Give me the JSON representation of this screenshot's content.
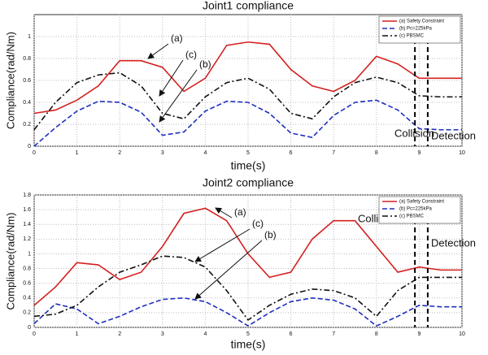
{
  "chart_data": [
    {
      "type": "line",
      "title": "Joint1 compliance",
      "x_label": "time(s)",
      "y_label": "Compliance(rad/Nm)",
      "x": [
        0,
        0.5,
        1,
        1.5,
        2,
        2.5,
        3,
        3.5,
        4,
        4.5,
        5,
        5.5,
        6,
        6.5,
        7,
        7.5,
        8,
        8.5,
        9,
        9.5,
        10
      ],
      "series": [
        {
          "name": "(a) Safety Constraint",
          "color": "#d42020",
          "linestyle": "solid",
          "values": [
            0.3,
            0.33,
            0.42,
            0.55,
            0.78,
            0.78,
            0.72,
            0.5,
            0.62,
            0.92,
            0.95,
            0.93,
            0.7,
            0.55,
            0.5,
            0.6,
            0.82,
            0.75,
            0.62,
            0.62,
            0.62
          ]
        },
        {
          "name": "(b) Pc=225kPa",
          "color": "#1f2fbf",
          "linestyle": "dashed",
          "values": [
            0,
            0.17,
            0.32,
            0.41,
            0.4,
            0.31,
            0.1,
            0.13,
            0.32,
            0.41,
            0.4,
            0.3,
            0.12,
            0.08,
            0.28,
            0.4,
            0.42,
            0.33,
            0.16,
            0.15,
            0.15
          ]
        },
        {
          "name": "(c) PBSMC",
          "color": "#111111",
          "linestyle": "dashdot",
          "values": [
            0.15,
            0.4,
            0.58,
            0.65,
            0.67,
            0.55,
            0.3,
            0.25,
            0.45,
            0.58,
            0.62,
            0.52,
            0.3,
            0.25,
            0.45,
            0.58,
            0.63,
            0.58,
            0.46,
            0.45,
            0.45
          ]
        }
      ],
      "annotations": [
        "(a)",
        "(c)",
        "(b)"
      ],
      "events": [
        {
          "label": "Collision",
          "x": 8.9
        },
        {
          "label": "Detection",
          "x": 9.2
        }
      ],
      "xlim": [
        0,
        10
      ],
      "xticks": [
        0,
        1,
        2,
        3,
        4,
        5,
        6,
        7,
        8,
        9,
        10
      ],
      "ylim": [
        0,
        1.2
      ],
      "yticks": [
        0,
        0.2,
        0.4,
        0.6,
        0.8,
        1
      ],
      "grid": true,
      "legend": "upper right"
    },
    {
      "type": "line",
      "title": "Joint2 compliance",
      "x_label": "time(s)",
      "y_label": "Compliance(rad/Nm)",
      "x": [
        0,
        0.5,
        1,
        1.5,
        2,
        2.5,
        3,
        3.5,
        4,
        4.5,
        5,
        5.5,
        6,
        6.5,
        7,
        7.5,
        8,
        8.5,
        9,
        9.5,
        10
      ],
      "series": [
        {
          "name": "(a) Safety Constraint",
          "color": "#d42020",
          "linestyle": "solid",
          "values": [
            0.3,
            0.55,
            0.88,
            0.85,
            0.65,
            0.75,
            1.1,
            1.55,
            1.62,
            1.45,
            1.0,
            0.68,
            0.75,
            1.2,
            1.45,
            1.45,
            1.1,
            0.75,
            0.82,
            0.78,
            0.78
          ]
        },
        {
          "name": "(b) Pc=225kPa",
          "color": "#1f2fbf",
          "linestyle": "dashed",
          "values": [
            0.05,
            0.32,
            0.25,
            0.05,
            0.15,
            0.28,
            0.38,
            0.4,
            0.35,
            0.2,
            0.02,
            0.2,
            0.35,
            0.4,
            0.37,
            0.25,
            0.02,
            0.15,
            0.3,
            0.28,
            0.28
          ]
        },
        {
          "name": "(c) PBSMC",
          "color": "#111111",
          "linestyle": "dashdot",
          "values": [
            0.15,
            0.18,
            0.3,
            0.55,
            0.75,
            0.85,
            0.97,
            0.95,
            0.82,
            0.5,
            0.1,
            0.3,
            0.45,
            0.52,
            0.5,
            0.4,
            0.15,
            0.5,
            0.68,
            0.68,
            0.68
          ]
        }
      ],
      "annotations": [
        "(a)",
        "(c)",
        "(b)"
      ],
      "events": [
        {
          "label": "Collision",
          "x": 8.9
        },
        {
          "label": "Detection",
          "x": 9.2
        }
      ],
      "xlim": [
        0,
        10
      ],
      "xticks": [
        0,
        1,
        2,
        3,
        4,
        5,
        6,
        7,
        8,
        9,
        10
      ],
      "ylim": [
        0,
        1.8
      ],
      "yticks": [
        0,
        0.2,
        0.4,
        0.6,
        0.8,
        1,
        1.2,
        1.4,
        1.6,
        1.8
      ],
      "grid": true,
      "legend": "upper right"
    }
  ]
}
